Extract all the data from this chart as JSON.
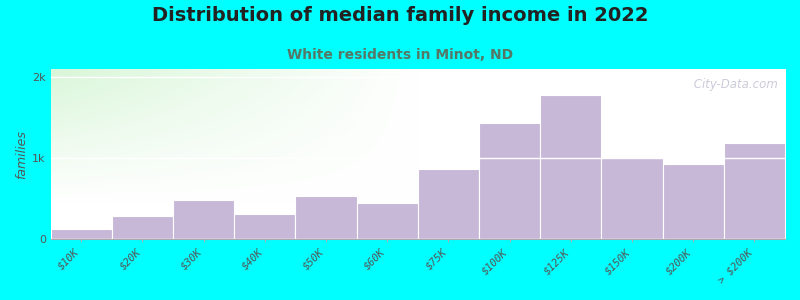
{
  "title": "Distribution of median family income in 2022",
  "subtitle": "White residents in Minot, ND",
  "ylabel": "families",
  "background_color": "#00FFFF",
  "plot_bg_colors": [
    "#d8efd8",
    "#f5f8f0",
    "#f0f0f0",
    "#f8f8f8"
  ],
  "bar_color": "#c8b8d8",
  "bar_edge_color": "#ddccee",
  "categories": [
    "$10K",
    "$20K",
    "$30K",
    "$40K",
    "$50K",
    "$60K",
    "$75K",
    "$100K",
    "$125K",
    "$150K",
    "$200K",
    "> $200K"
  ],
  "values": [
    130,
    290,
    480,
    310,
    540,
    450,
    870,
    1430,
    1780,
    1020,
    930,
    1190
  ],
  "ylim": [
    0,
    2100
  ],
  "yticks": [
    0,
    1000,
    2000
  ],
  "ytick_labels": [
    "0",
    "1k",
    "2k"
  ],
  "title_fontsize": 14,
  "subtitle_fontsize": 10,
  "subtitle_color": "#557766",
  "ylabel_fontsize": 9,
  "watermark": " City-Data.com"
}
